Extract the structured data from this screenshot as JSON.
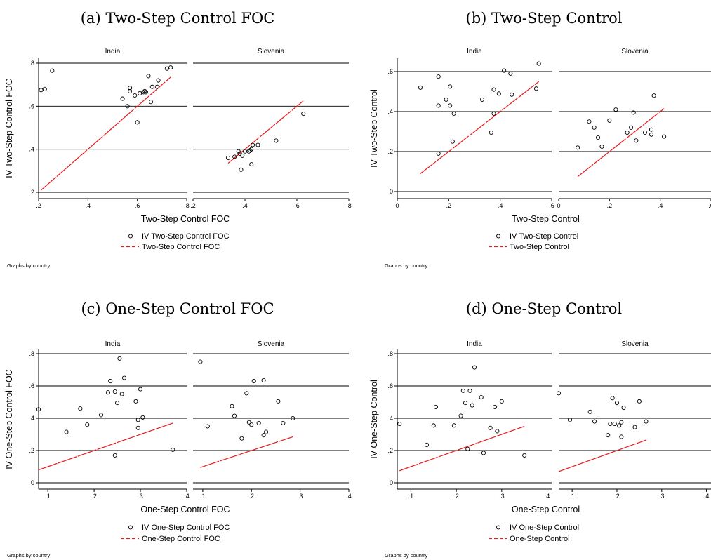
{
  "chart_data": [
    {
      "type": "scatter",
      "title": "(a) Two-Step Control FOC",
      "xlabel": "Two-Step Control FOC",
      "ylabel": "IV Two-Step Control FOC",
      "xlim": [
        0.2,
        0.8
      ],
      "ylim": [
        0.2,
        0.8
      ],
      "xticks": [
        0.2,
        0.4,
        0.6,
        0.8
      ],
      "xtick_labels": [
        ".2",
        ".4",
        ".6",
        ".8"
      ],
      "yticks": [
        0.2,
        0.4,
        0.6,
        0.8
      ],
      "ytick_labels": [
        ".2",
        ".4",
        ".6",
        ".8"
      ],
      "grid": true,
      "legend": [
        "IV Two-Step Control FOC",
        "Two-Step Control FOC"
      ],
      "note": "Graphs by country",
      "panels": [
        {
          "name": "India",
          "points": [
            [
              0.21,
              0.675
            ],
            [
              0.225,
              0.68
            ],
            [
              0.255,
              0.765
            ],
            [
              0.54,
              0.635
            ],
            [
              0.56,
              0.6
            ],
            [
              0.57,
              0.67
            ],
            [
              0.57,
              0.685
            ],
            [
              0.59,
              0.65
            ],
            [
              0.6,
              0.525
            ],
            [
              0.61,
              0.66
            ],
            [
              0.625,
              0.665
            ],
            [
              0.63,
              0.67
            ],
            [
              0.635,
              0.665
            ],
            [
              0.645,
              0.74
            ],
            [
              0.655,
              0.62
            ],
            [
              0.66,
              0.69
            ],
            [
              0.68,
              0.69
            ],
            [
              0.685,
              0.72
            ],
            [
              0.72,
              0.775
            ],
            [
              0.735,
              0.78
            ]
          ],
          "line": [
            [
              0.21,
              0.21
            ],
            [
              0.735,
              0.735
            ]
          ]
        },
        {
          "name": "Slovenia",
          "points": [
            [
              0.335,
              0.36
            ],
            [
              0.36,
              0.365
            ],
            [
              0.375,
              0.39
            ],
            [
              0.38,
              0.38
            ],
            [
              0.385,
              0.305
            ],
            [
              0.39,
              0.37
            ],
            [
              0.4,
              0.39
            ],
            [
              0.415,
              0.39
            ],
            [
              0.42,
              0.395
            ],
            [
              0.425,
              0.4
            ],
            [
              0.425,
              0.33
            ],
            [
              0.43,
              0.42
            ],
            [
              0.45,
              0.42
            ],
            [
              0.52,
              0.44
            ],
            [
              0.625,
              0.565
            ]
          ],
          "line": [
            [
              0.335,
              0.335
            ],
            [
              0.625,
              0.625
            ]
          ]
        }
      ]
    },
    {
      "type": "scatter",
      "title": "(b) Two-Step Control",
      "xlabel": "Two-Step Control",
      "ylabel": "IV Two-Step Control",
      "xlim": [
        0,
        0.6
      ],
      "ylim": [
        0,
        0.6
      ],
      "xticks": [
        0,
        0.2,
        0.4,
        0.6
      ],
      "xtick_labels": [
        "0",
        ".2",
        ".4",
        ".6"
      ],
      "yticks": [
        0,
        0.2,
        0.4,
        0.6
      ],
      "ytick_labels": [
        "0",
        ".2",
        ".4",
        ".6"
      ],
      "grid": true,
      "legend": [
        "IV Two-Step Control",
        "Two-Step Control"
      ],
      "note": "Graphs by country",
      "panels": [
        {
          "name": "India",
          "points": [
            [
              0.09,
              0.52
            ],
            [
              0.16,
              0.575
            ],
            [
              0.16,
              0.43
            ],
            [
              0.16,
              0.19
            ],
            [
              0.19,
              0.46
            ],
            [
              0.205,
              0.525
            ],
            [
              0.205,
              0.43
            ],
            [
              0.215,
              0.25
            ],
            [
              0.22,
              0.39
            ],
            [
              0.33,
              0.46
            ],
            [
              0.365,
              0.295
            ],
            [
              0.375,
              0.51
            ],
            [
              0.375,
              0.39
            ],
            [
              0.395,
              0.49
            ],
            [
              0.415,
              0.605
            ],
            [
              0.44,
              0.59
            ],
            [
              0.445,
              0.485
            ],
            [
              0.54,
              0.515
            ],
            [
              0.55,
              0.64
            ]
          ],
          "line": [
            [
              0.09,
              0.09
            ],
            [
              0.55,
              0.55
            ]
          ]
        },
        {
          "name": "Slovenia",
          "points": [
            [
              0.075,
              0.22
            ],
            [
              0.12,
              0.35
            ],
            [
              0.14,
              0.32
            ],
            [
              0.155,
              0.27
            ],
            [
              0.17,
              0.225
            ],
            [
              0.2,
              0.355
            ],
            [
              0.225,
              0.41
            ],
            [
              0.27,
              0.295
            ],
            [
              0.285,
              0.32
            ],
            [
              0.295,
              0.395
            ],
            [
              0.305,
              0.255
            ],
            [
              0.34,
              0.295
            ],
            [
              0.365,
              0.31
            ],
            [
              0.365,
              0.285
            ],
            [
              0.375,
              0.48
            ],
            [
              0.415,
              0.275
            ]
          ],
          "line": [
            [
              0.075,
              0.075
            ],
            [
              0.415,
              0.415
            ]
          ]
        }
      ]
    },
    {
      "type": "scatter",
      "title": "(c) One-Step Control FOC",
      "xlabel": "One-Step Control FOC",
      "ylabel": "IV One-Step Control FOC",
      "xlim": [
        0.08,
        0.4
      ],
      "ylim": [
        0,
        0.8
      ],
      "xticks": [
        0.1,
        0.2,
        0.3,
        0.4
      ],
      "xtick_labels": [
        ".1",
        ".2",
        ".3",
        ".4"
      ],
      "yticks": [
        0,
        0.2,
        0.4,
        0.6,
        0.8
      ],
      "ytick_labels": [
        "0",
        ".2",
        ".4",
        ".6",
        ".8"
      ],
      "grid": true,
      "legend": [
        "IV One-Step Control FOC",
        "One-Step Control FOC"
      ],
      "note": "Graphs by country",
      "panels": [
        {
          "name": "India",
          "points": [
            [
              0.08,
              0.455
            ],
            [
              0.14,
              0.315
            ],
            [
              0.17,
              0.46
            ],
            [
              0.185,
              0.36
            ],
            [
              0.215,
              0.42
            ],
            [
              0.23,
              0.56
            ],
            [
              0.235,
              0.63
            ],
            [
              0.245,
              0.565
            ],
            [
              0.245,
              0.17
            ],
            [
              0.25,
              0.495
            ],
            [
              0.255,
              0.77
            ],
            [
              0.26,
              0.55
            ],
            [
              0.265,
              0.65
            ],
            [
              0.29,
              0.505
            ],
            [
              0.295,
              0.34
            ],
            [
              0.295,
              0.39
            ],
            [
              0.3,
              0.58
            ],
            [
              0.305,
              0.405
            ],
            [
              0.37,
              0.205
            ]
          ],
          "line": [
            [
              0.08,
              0.08
            ],
            [
              0.37,
              0.37
            ]
          ]
        },
        {
          "name": "Slovenia",
          "points": [
            [
              0.095,
              0.75
            ],
            [
              0.11,
              0.35
            ],
            [
              0.16,
              0.475
            ],
            [
              0.165,
              0.415
            ],
            [
              0.18,
              0.275
            ],
            [
              0.19,
              0.555
            ],
            [
              0.195,
              0.375
            ],
            [
              0.2,
              0.36
            ],
            [
              0.205,
              0.63
            ],
            [
              0.215,
              0.37
            ],
            [
              0.225,
              0.635
            ],
            [
              0.225,
              0.295
            ],
            [
              0.23,
              0.315
            ],
            [
              0.255,
              0.505
            ],
            [
              0.265,
              0.37
            ],
            [
              0.285,
              0.4
            ]
          ],
          "line": [
            [
              0.095,
              0.095
            ],
            [
              0.285,
              0.285
            ]
          ]
        }
      ]
    },
    {
      "type": "scatter",
      "title": "(d) One-Step Control",
      "xlabel": "One-Step Control",
      "ylabel": "IV One-Step Control",
      "xlim": [
        0.07,
        0.41
      ],
      "ylim": [
        0,
        0.8
      ],
      "xticks": [
        0.1,
        0.2,
        0.3,
        0.4
      ],
      "xtick_labels": [
        ".1",
        ".2",
        ".3",
        ".4"
      ],
      "yticks": [
        0,
        0.2,
        0.4,
        0.6,
        0.8
      ],
      "ytick_labels": [
        "0",
        ".2",
        ".4",
        ".6",
        ".8"
      ],
      "grid": true,
      "legend": [
        "IV One-Step Control",
        "One-Step Control"
      ],
      "note": "Graphs by country",
      "panels": [
        {
          "name": "India",
          "points": [
            [
              0.075,
              0.365
            ],
            [
              0.135,
              0.235
            ],
            [
              0.15,
              0.355
            ],
            [
              0.155,
              0.47
            ],
            [
              0.195,
              0.355
            ],
            [
              0.21,
              0.415
            ],
            [
              0.215,
              0.57
            ],
            [
              0.22,
              0.495
            ],
            [
              0.225,
              0.21
            ],
            [
              0.23,
              0.57
            ],
            [
              0.235,
              0.48
            ],
            [
              0.24,
              0.715
            ],
            [
              0.255,
              0.53
            ],
            [
              0.26,
              0.185
            ],
            [
              0.275,
              0.34
            ],
            [
              0.285,
              0.47
            ],
            [
              0.29,
              0.32
            ],
            [
              0.3,
              0.505
            ],
            [
              0.35,
              0.17
            ]
          ],
          "line": [
            [
              0.075,
              0.075
            ],
            [
              0.35,
              0.35
            ]
          ]
        },
        {
          "name": "Slovenia",
          "points": [
            [
              0.07,
              0.555
            ],
            [
              0.095,
              0.39
            ],
            [
              0.14,
              0.44
            ],
            [
              0.15,
              0.38
            ],
            [
              0.18,
              0.295
            ],
            [
              0.185,
              0.365
            ],
            [
              0.19,
              0.525
            ],
            [
              0.195,
              0.365
            ],
            [
              0.2,
              0.495
            ],
            [
              0.205,
              0.355
            ],
            [
              0.21,
              0.375
            ],
            [
              0.21,
              0.285
            ],
            [
              0.215,
              0.465
            ],
            [
              0.24,
              0.345
            ],
            [
              0.25,
              0.505
            ],
            [
              0.265,
              0.38
            ]
          ],
          "line": [
            [
              0.07,
              0.07
            ],
            [
              0.265,
              0.265
            ]
          ]
        }
      ]
    }
  ]
}
